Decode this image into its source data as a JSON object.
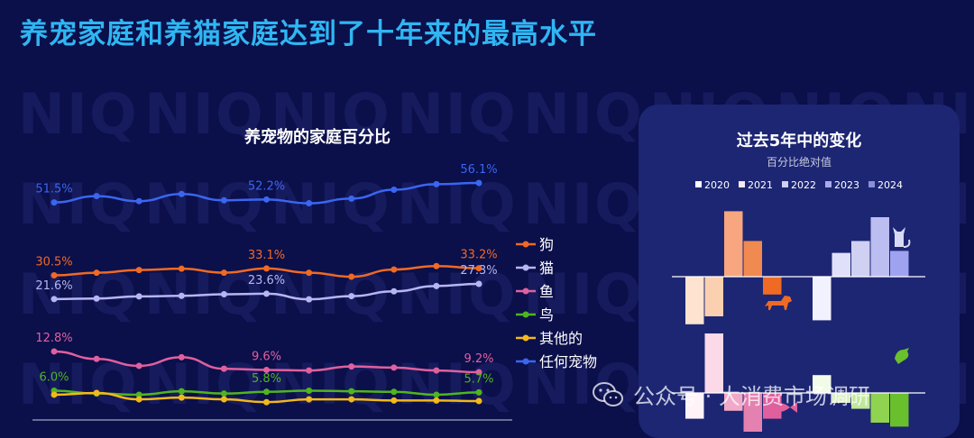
{
  "title": "养宠家庭和养猫家庭达到了十年来的最高水平",
  "watermark_text": "NIQ",
  "footer_watermark": "公众号 · 大消费市场调研",
  "chart_data": [
    {
      "type": "line",
      "title": "养宠物的家庭百分比",
      "x": [
        1,
        2,
        3,
        4,
        5,
        6,
        7,
        8,
        9,
        10,
        11
      ],
      "ylim": [
        0,
        60
      ],
      "grid": false,
      "legend_position": "right",
      "series": [
        {
          "name": "狗",
          "color": "#ef6a24",
          "values": [
            30.5,
            31.5,
            32.5,
            33.0,
            31.5,
            33.1,
            31.5,
            30.0,
            32.7,
            34.0,
            33.2
          ],
          "labels": [
            {
              "i": 0,
              "text": "30.5%"
            },
            {
              "i": 5,
              "text": "33.1%"
            },
            {
              "i": 10,
              "text": "33.2%"
            }
          ]
        },
        {
          "name": "猫",
          "color": "#b6b6f2",
          "values": [
            21.6,
            21.8,
            22.6,
            22.8,
            23.4,
            23.6,
            21.5,
            22.7,
            24.5,
            26.5,
            27.3
          ],
          "labels": [
            {
              "i": 0,
              "text": "21.6%"
            },
            {
              "i": 5,
              "text": "23.6%"
            },
            {
              "i": 10,
              "text": "27.3%"
            }
          ]
        },
        {
          "name": "鱼",
          "color": "#e0609e",
          "values": [
            12.8,
            11.5,
            10.3,
            11.8,
            9.8,
            9.6,
            9.5,
            10.2,
            10.0,
            9.5,
            9.2
          ],
          "labels": [
            {
              "i": 0,
              "text": "12.8%"
            },
            {
              "i": 5,
              "text": "9.6%"
            },
            {
              "i": 10,
              "text": "9.2%"
            }
          ]
        },
        {
          "name": "鸟",
          "color": "#4fb51f",
          "values": [
            6.0,
            5.5,
            5.3,
            5.9,
            5.5,
            5.8,
            6.0,
            5.9,
            5.8,
            5.3,
            5.7
          ],
          "labels": [
            {
              "i": 0,
              "text": "6.0%"
            },
            {
              "i": 5,
              "text": "5.8%"
            },
            {
              "i": 10,
              "text": "5.7%"
            }
          ]
        },
        {
          "name": "其他的",
          "color": "#f3b81a",
          "values": [
            5.3,
            5.6,
            4.5,
            4.8,
            4.5,
            4.0,
            4.5,
            4.5,
            4.3,
            4.3,
            4.2
          ],
          "labels": []
        },
        {
          "name": "任何宠物",
          "color": "#3a66f0",
          "values": [
            51.5,
            53.0,
            51.8,
            53.5,
            52.0,
            52.2,
            51.3,
            52.4,
            54.5,
            55.8,
            56.1
          ],
          "labels": [
            {
              "i": 0,
              "text": "51.5%"
            },
            {
              "i": 5,
              "text": "52.2%"
            },
            {
              "i": 10,
              "text": "56.1%"
            }
          ]
        }
      ]
    },
    {
      "type": "bar",
      "title": "过去5年中的变化",
      "subtitle": "百分比绝对值",
      "categories": [
        "2020",
        "2021",
        "2022",
        "2023",
        "2024"
      ],
      "category_colors": [
        "#ffffff",
        "#f3e9f1",
        "#cfd0f2",
        "#a8a9e8",
        "#8a8ed8"
      ],
      "groups": [
        {
          "pet_icon": "dog-icon",
          "colors": [
            "#fde3d0",
            "#fbd0b0",
            "#f7a680",
            "#f08a50",
            "#ef6a24"
          ],
          "values": [
            -2.4,
            -2.0,
            3.3,
            1.8,
            -0.9
          ]
        },
        {
          "pet_icon": "cat-icon",
          "colors": [
            "#f2f2ff",
            "#e0e0fa",
            "#cfd0f2",
            "#bcbdf0",
            "#9fa3ef"
          ],
          "values": [
            -2.2,
            1.2,
            1.8,
            3.0,
            1.3
          ]
        },
        {
          "pet_icon": "fish-icon",
          "colors": [
            "#fff3f8",
            "#fbd9e8",
            "#f2a8c8",
            "#e581b0",
            "#e0609e"
          ],
          "values": [
            -1.3,
            3.0,
            -0.9,
            -2.8,
            -1.3
          ]
        },
        {
          "pet_icon": "bird-icon",
          "colors": [
            "#f2fbe8",
            "#dcf0c4",
            "#bfe89a",
            "#8fd350",
            "#6abf2d"
          ],
          "values": [
            0.9,
            -0.5,
            -0.8,
            -1.5,
            -1.7
          ]
        }
      ]
    }
  ]
}
